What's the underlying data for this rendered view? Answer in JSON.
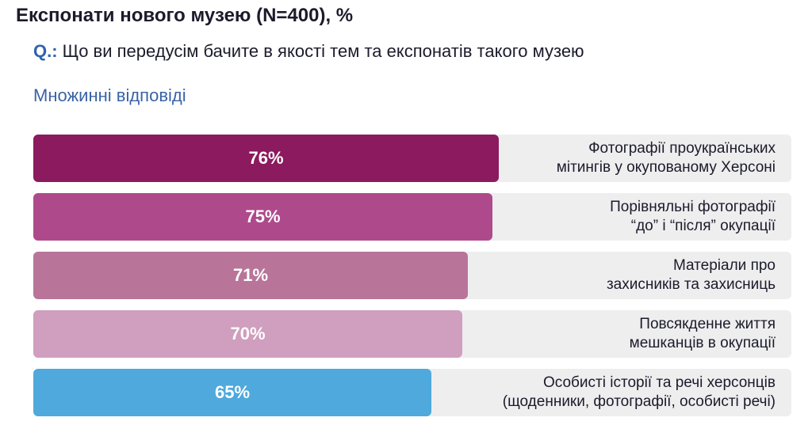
{
  "header": {
    "title": "Експонати нового музею (N=400), %",
    "question_prefix": "Q.:",
    "question_text": "Що ви передусім бачите в якості тем та експонатів такого музею",
    "note": "Множинні відповіді"
  },
  "chart_data": {
    "type": "bar",
    "orientation": "horizontal",
    "categories": [
      "Фотографії проукраїнських\nмітингів у окупованому Херсоні",
      "Порівняльні фотографії\n“до” і “після” окупації",
      "Матеріали про\nзахисників та захисниць",
      "Повсякденне життя\nмешканців в окупації",
      "Особисті історії та речі херсонців\n(щоденники, фотографії, особисті речі)"
    ],
    "values": [
      76,
      75,
      71,
      70,
      65
    ],
    "value_labels": [
      "76%",
      "75%",
      "71%",
      "70%",
      "65%"
    ],
    "colors": [
      "#8b1a5e",
      "#ae4a8c",
      "#b87599",
      "#d09ebe",
      "#4fa9dc"
    ],
    "title": "Експонати нового музею (N=400), %",
    "xlim": [
      0,
      100
    ],
    "unit": "%"
  }
}
